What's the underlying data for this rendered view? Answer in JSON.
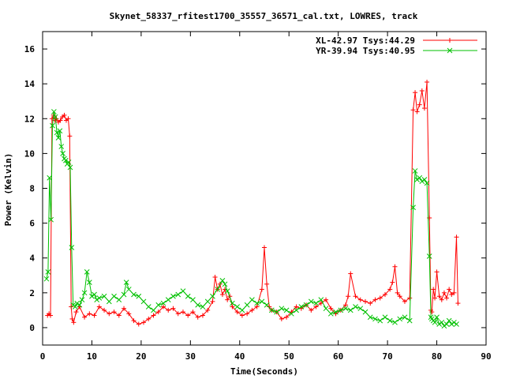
{
  "chart_data": {
    "type": "line",
    "title": "Skynet_58337_rfitest1700_35557_36571_cal.txt, LOWRES, track",
    "xlabel": "Time(Seconds)",
    "ylabel": "Power (Kelvin)",
    "xlim": [
      0,
      90
    ],
    "ylim": [
      -1,
      17
    ],
    "x_ticks": [
      0,
      10,
      20,
      30,
      40,
      50,
      60,
      70,
      80,
      90
    ],
    "y_ticks": [
      0,
      2,
      4,
      6,
      8,
      10,
      12,
      14,
      16
    ],
    "grid": false,
    "legend_position": "top-right",
    "series": [
      {
        "name": "XL-42.97 Tsys:44.29",
        "color": "#ff0000",
        "marker": "plus",
        "x": [
          1.0,
          1.3,
          1.6,
          1.9,
          2.2,
          2.5,
          2.8,
          3.2,
          3.6,
          4.0,
          4.4,
          4.8,
          5.2,
          5.5,
          5.8,
          6.0,
          6.3,
          6.8,
          7.5,
          8.5,
          9.5,
          10.5,
          11.5,
          12.5,
          13.5,
          14.5,
          15.5,
          16.5,
          17.5,
          18.5,
          19.5,
          20.5,
          21.5,
          22.5,
          23.5,
          24.5,
          25.5,
          26.5,
          27.5,
          28.5,
          29.5,
          30.5,
          31.5,
          32.5,
          33.5,
          34.5,
          35.0,
          35.5,
          36.0,
          36.5,
          37.0,
          37.5,
          38.0,
          38.5,
          39.5,
          40.5,
          41.5,
          42.5,
          43.5,
          44.5,
          45.0,
          45.5,
          46.0,
          46.5,
          47.5,
          48.5,
          49.5,
          50.5,
          51.5,
          52.5,
          53.5,
          54.5,
          55.5,
          56.5,
          57.5,
          58.5,
          59.5,
          60.5,
          61.5,
          62.0,
          62.5,
          63.5,
          64.5,
          65.5,
          66.5,
          67.5,
          68.5,
          69.5,
          70.5,
          71.0,
          71.5,
          72.0,
          72.5,
          73.5,
          74.5,
          75.2,
          75.6,
          76.0,
          76.5,
          77.0,
          77.5,
          78.0,
          78.5,
          78.8,
          79.0,
          79.3,
          79.6,
          80.0,
          80.5,
          81.0,
          81.5,
          82.0,
          82.5,
          83.0,
          83.5,
          84.0,
          84.3
        ],
        "values": [
          0.7,
          0.8,
          0.7,
          12.0,
          12.2,
          11.9,
          12.0,
          11.8,
          11.9,
          12.1,
          12.2,
          11.9,
          12.0,
          11.0,
          1.2,
          0.5,
          0.3,
          0.9,
          1.2,
          0.6,
          0.8,
          0.7,
          1.2,
          1.0,
          0.8,
          0.9,
          0.7,
          1.1,
          0.8,
          0.4,
          0.2,
          0.3,
          0.5,
          0.7,
          0.9,
          1.2,
          1.0,
          1.1,
          0.8,
          0.9,
          0.7,
          0.9,
          0.6,
          0.7,
          1.0,
          1.5,
          2.9,
          2.2,
          2.5,
          1.9,
          2.2,
          1.6,
          1.8,
          1.2,
          0.9,
          0.7,
          0.8,
          1.0,
          1.2,
          2.2,
          4.6,
          2.5,
          1.2,
          1.0,
          0.9,
          0.5,
          0.6,
          0.9,
          1.2,
          1.1,
          1.3,
          1.0,
          1.2,
          1.4,
          1.6,
          1.1,
          0.8,
          1.0,
          1.3,
          1.8,
          3.1,
          1.8,
          1.6,
          1.5,
          1.4,
          1.6,
          1.7,
          1.9,
          2.2,
          2.6,
          3.5,
          2.0,
          1.8,
          1.5,
          1.7,
          12.5,
          13.5,
          12.4,
          12.8,
          13.6,
          12.6,
          14.1,
          6.3,
          1.0,
          0.9,
          2.2,
          1.7,
          3.2,
          1.8,
          1.6,
          2.0,
          1.7,
          2.2,
          1.9,
          2.0,
          5.2,
          1.4
        ]
      },
      {
        "name": "YR-39.94 Tsys:40.95",
        "color": "#00c000",
        "marker": "x",
        "x": [
          0.8,
          1.1,
          1.4,
          1.7,
          2.0,
          2.3,
          2.6,
          2.9,
          3.2,
          3.5,
          3.8,
          4.1,
          4.4,
          4.7,
          5.0,
          5.3,
          5.6,
          5.9,
          6.2,
          6.6,
          7.0,
          7.5,
          8.0,
          8.5,
          9.0,
          9.5,
          10.0,
          10.5,
          11.0,
          11.5,
          12.5,
          13.5,
          14.5,
          15.5,
          16.5,
          17.0,
          17.5,
          18.5,
          19.5,
          20.5,
          21.5,
          22.5,
          23.5,
          24.5,
          25.5,
          26.5,
          27.5,
          28.5,
          29.5,
          30.5,
          31.5,
          32.5,
          33.5,
          34.5,
          35.5,
          36.5,
          37.0,
          37.5,
          38.5,
          39.5,
          40.5,
          41.5,
          42.5,
          43.5,
          44.5,
          45.5,
          46.5,
          47.5,
          48.5,
          49.5,
          50.5,
          51.5,
          52.5,
          53.5,
          54.5,
          55.5,
          56.5,
          57.5,
          58.5,
          59.5,
          60.5,
          61.5,
          62.5,
          63.5,
          64.5,
          65.5,
          66.5,
          67.5,
          68.5,
          69.5,
          70.5,
          71.5,
          72.5,
          73.5,
          74.5,
          75.2,
          75.6,
          76.0,
          76.5,
          77.0,
          77.5,
          78.0,
          78.5,
          78.8,
          79.0,
          79.3,
          79.6,
          80.0,
          80.5,
          81.0,
          81.5,
          82.0,
          82.5,
          83.0,
          83.5,
          84.0
        ],
        "values": [
          2.8,
          3.2,
          8.6,
          6.2,
          11.6,
          12.4,
          12.1,
          11.2,
          10.9,
          11.3,
          10.4,
          10.0,
          9.7,
          9.6,
          9.4,
          9.5,
          9.2,
          4.6,
          1.3,
          1.2,
          1.4,
          1.3,
          1.6,
          2.0,
          3.2,
          2.6,
          1.8,
          1.9,
          1.6,
          1.7,
          1.8,
          1.5,
          1.8,
          1.6,
          1.9,
          2.6,
          2.2,
          1.9,
          1.8,
          1.5,
          1.2,
          1.0,
          1.3,
          1.4,
          1.6,
          1.8,
          1.9,
          2.1,
          1.8,
          1.6,
          1.3,
          1.2,
          1.5,
          1.8,
          2.2,
          2.7,
          2.5,
          2.1,
          1.4,
          1.2,
          1.0,
          1.3,
          1.6,
          1.4,
          1.5,
          1.3,
          1.0,
          0.9,
          1.1,
          1.0,
          0.8,
          1.0,
          1.2,
          1.3,
          1.5,
          1.4,
          1.6,
          1.1,
          0.8,
          0.9,
          1.0,
          1.1,
          1.0,
          1.2,
          1.1,
          0.9,
          0.6,
          0.5,
          0.4,
          0.6,
          0.4,
          0.3,
          0.5,
          0.6,
          0.4,
          6.9,
          9.0,
          8.5,
          8.6,
          8.4,
          8.5,
          8.3,
          4.1,
          0.6,
          0.5,
          0.4,
          0.3,
          0.6,
          0.2,
          0.3,
          0.1,
          0.2,
          0.4,
          0.2,
          0.3,
          0.2
        ]
      }
    ]
  }
}
